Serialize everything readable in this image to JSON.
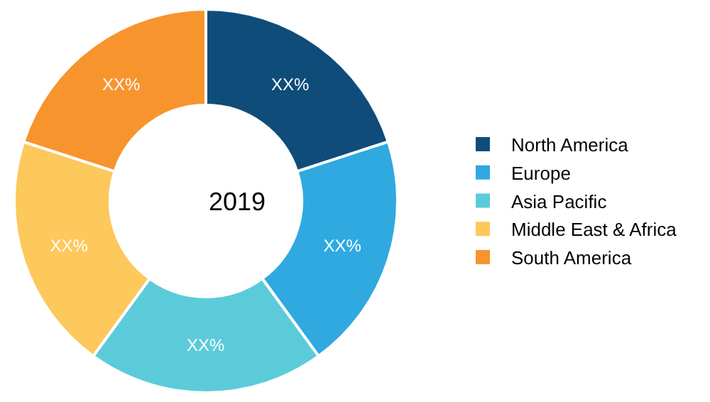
{
  "chart_data": {
    "type": "donut",
    "categories": [
      "North America",
      "Europe",
      "Asia Pacific",
      "Middle East & Africa",
      "South America"
    ],
    "values": [
      20,
      20,
      20,
      20,
      20
    ],
    "value_labels": [
      "XX%",
      "XX%",
      "XX%",
      "XX%",
      "XX%"
    ],
    "colors": [
      "#0f4c7a",
      "#2fa9e0",
      "#5ccbd9",
      "#fdc85c",
      "#f7942e"
    ],
    "annotations": [
      "2019"
    ],
    "legend": "right"
  }
}
